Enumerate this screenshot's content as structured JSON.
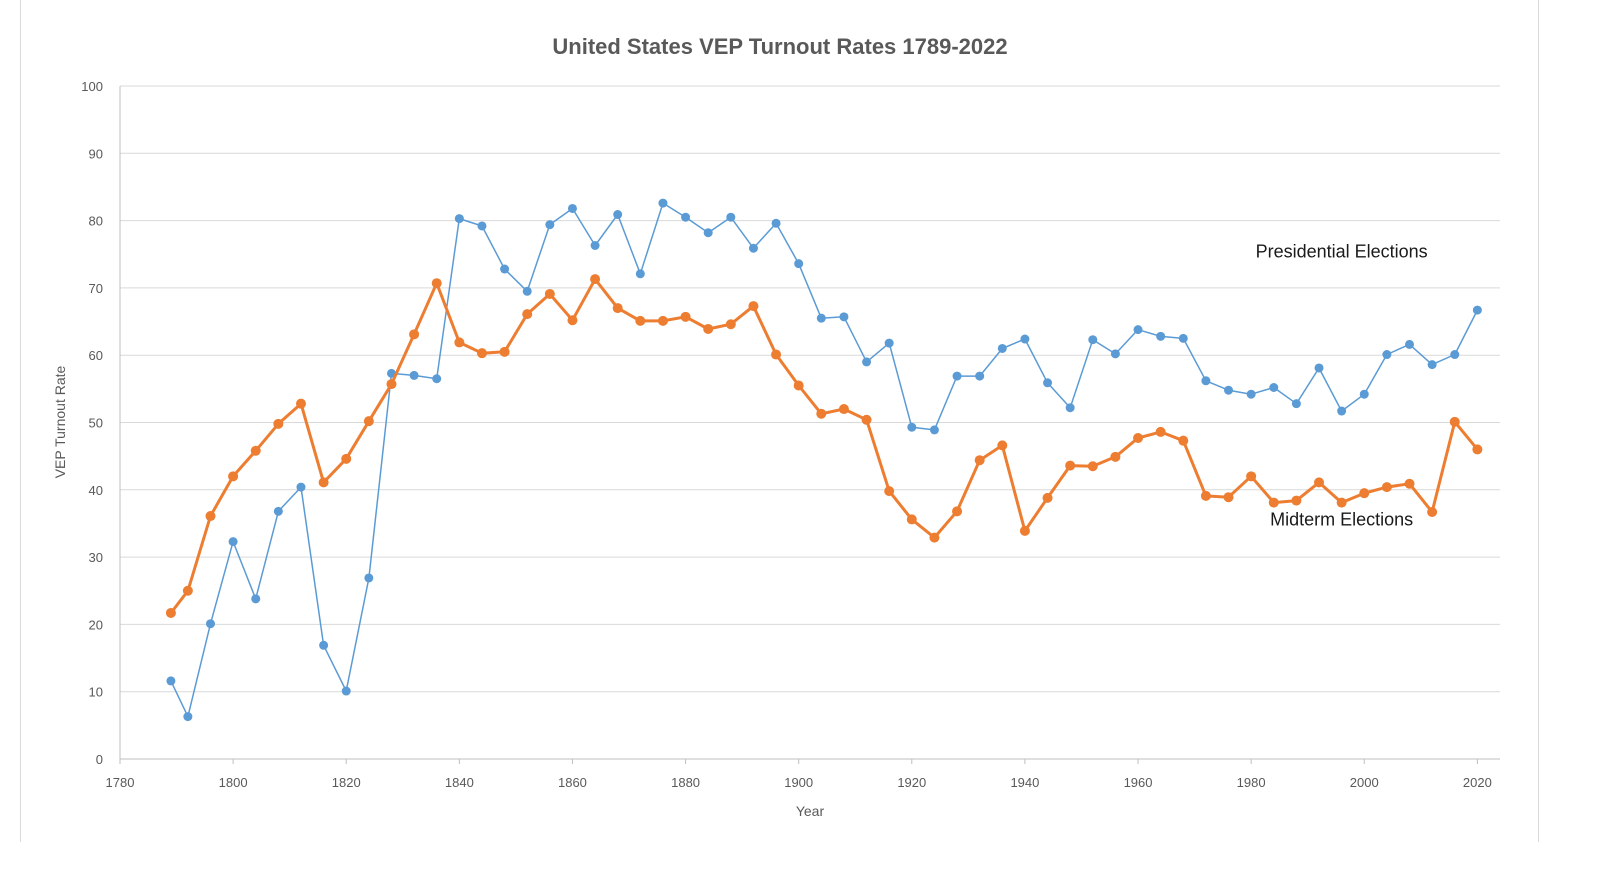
{
  "chart_data": {
    "type": "line",
    "title": "United States VEP Turnout Rates 1789-2022",
    "xlabel": "Year",
    "ylabel": "VEP Turnout Rate",
    "xlim": [
      1780,
      2024
    ],
    "ylim": [
      0,
      100
    ],
    "xticks": [
      1780,
      1800,
      1820,
      1840,
      1860,
      1880,
      1900,
      1920,
      1940,
      1960,
      1980,
      2000,
      2020
    ],
    "yticks": [
      0,
      10,
      20,
      30,
      40,
      50,
      60,
      70,
      80,
      90,
      100
    ],
    "grid": true,
    "series": [
      {
        "name": "Presidential Elections",
        "color": "#5b9bd5",
        "points": [
          [
            1789,
            11.6
          ],
          [
            1792,
            6.3
          ],
          [
            1796,
            20.1
          ],
          [
            1800,
            32.3
          ],
          [
            1804,
            23.8
          ],
          [
            1808,
            36.8
          ],
          [
            1812,
            40.4
          ],
          [
            1816,
            16.9
          ],
          [
            1820,
            10.1
          ],
          [
            1824,
            26.9
          ],
          [
            1828,
            57.3
          ],
          [
            1832,
            57.0
          ],
          [
            1836,
            56.5
          ],
          [
            1840,
            80.3
          ],
          [
            1844,
            79.2
          ],
          [
            1848,
            72.8
          ],
          [
            1852,
            69.5
          ],
          [
            1856,
            79.4
          ],
          [
            1860,
            81.8
          ],
          [
            1864,
            76.3
          ],
          [
            1868,
            80.9
          ],
          [
            1872,
            72.1
          ],
          [
            1876,
            82.6
          ],
          [
            1880,
            80.5
          ],
          [
            1884,
            78.2
          ],
          [
            1888,
            80.5
          ],
          [
            1892,
            75.9
          ],
          [
            1896,
            79.6
          ],
          [
            1900,
            73.6
          ],
          [
            1904,
            65.5
          ],
          [
            1908,
            65.7
          ],
          [
            1912,
            59.0
          ],
          [
            1916,
            61.8
          ],
          [
            1920,
            49.3
          ],
          [
            1924,
            48.9
          ],
          [
            1928,
            56.9
          ],
          [
            1932,
            56.9
          ],
          [
            1936,
            61.0
          ],
          [
            1940,
            62.4
          ],
          [
            1944,
            55.9
          ],
          [
            1948,
            52.2
          ],
          [
            1952,
            62.3
          ],
          [
            1956,
            60.2
          ],
          [
            1960,
            63.8
          ],
          [
            1964,
            62.8
          ],
          [
            1968,
            62.5
          ],
          [
            1972,
            56.2
          ],
          [
            1976,
            54.8
          ],
          [
            1980,
            54.2
          ],
          [
            1984,
            55.2
          ],
          [
            1988,
            52.8
          ],
          [
            1992,
            58.1
          ],
          [
            1996,
            51.7
          ],
          [
            2000,
            54.2
          ],
          [
            2004,
            60.1
          ],
          [
            2008,
            61.6
          ],
          [
            2012,
            58.6
          ],
          [
            2016,
            60.1
          ],
          [
            2020,
            66.7
          ]
        ]
      },
      {
        "name": "Midterm Elections",
        "color": "#ed7d31",
        "points": [
          [
            1789,
            21.7
          ],
          [
            1792,
            25.0
          ],
          [
            1796,
            36.1
          ],
          [
            1800,
            42.0
          ],
          [
            1804,
            45.8
          ],
          [
            1808,
            49.8
          ],
          [
            1812,
            52.8
          ],
          [
            1816,
            41.1
          ],
          [
            1820,
            44.6
          ],
          [
            1824,
            50.2
          ],
          [
            1828,
            55.7
          ],
          [
            1832,
            63.1
          ],
          [
            1836,
            70.7
          ],
          [
            1840,
            61.9
          ],
          [
            1844,
            60.3
          ],
          [
            1848,
            60.5
          ],
          [
            1852,
            66.1
          ],
          [
            1856,
            69.1
          ],
          [
            1860,
            65.2
          ],
          [
            1864,
            71.3
          ],
          [
            1868,
            67.0
          ],
          [
            1872,
            65.1
          ],
          [
            1876,
            65.1
          ],
          [
            1880,
            65.7
          ],
          [
            1884,
            63.9
          ],
          [
            1888,
            64.6
          ],
          [
            1892,
            67.3
          ],
          [
            1896,
            60.1
          ],
          [
            1900,
            55.5
          ],
          [
            1904,
            51.3
          ],
          [
            1908,
            52.0
          ],
          [
            1912,
            50.4
          ],
          [
            1916,
            39.8
          ],
          [
            1920,
            35.6
          ],
          [
            1924,
            32.9
          ],
          [
            1928,
            36.8
          ],
          [
            1932,
            44.4
          ],
          [
            1936,
            46.6
          ],
          [
            1940,
            33.9
          ],
          [
            1944,
            38.8
          ],
          [
            1948,
            43.6
          ],
          [
            1952,
            43.5
          ],
          [
            1956,
            44.9
          ],
          [
            1960,
            47.7
          ],
          [
            1964,
            48.6
          ],
          [
            1968,
            47.3
          ],
          [
            1972,
            39.1
          ],
          [
            1976,
            38.9
          ],
          [
            1980,
            42.0
          ],
          [
            1984,
            38.1
          ],
          [
            1988,
            38.4
          ],
          [
            1992,
            41.1
          ],
          [
            1996,
            38.1
          ],
          [
            2000,
            39.5
          ],
          [
            2004,
            40.4
          ],
          [
            2008,
            40.9
          ],
          [
            2012,
            36.7
          ],
          [
            2016,
            50.1
          ],
          [
            2020,
            46.0
          ]
        ]
      }
    ],
    "annotations": [
      {
        "text": "Presidential Elections",
        "x": 1996,
        "y": 74.5
      },
      {
        "text": "Midterm Elections",
        "x": 1996,
        "y": 34.7
      }
    ]
  }
}
